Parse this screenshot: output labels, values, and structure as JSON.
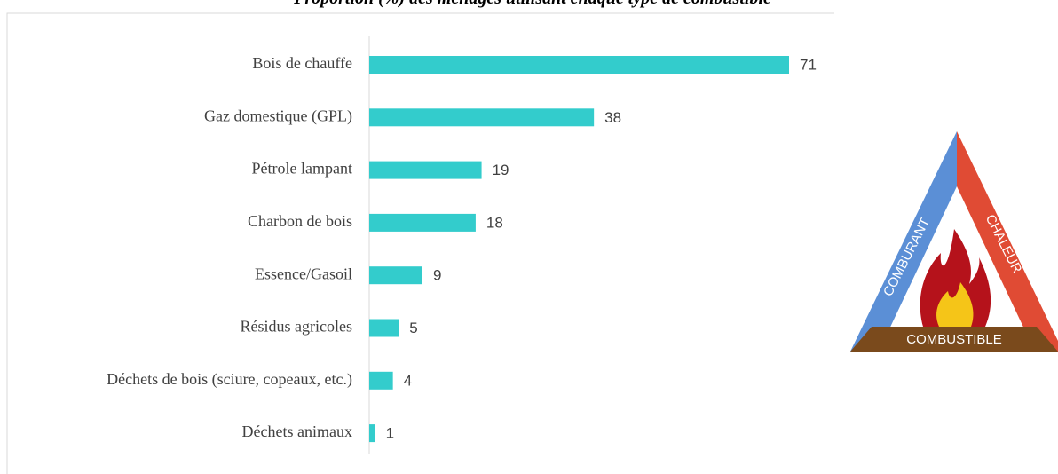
{
  "chart_data": {
    "type": "bar",
    "orientation": "horizontal",
    "title": "Proportion (%) des ménages utilisant chaque type de combustible",
    "categories": [
      "Bois de chauffe",
      "Gaz domestique (GPL)",
      "Pétrole lampant",
      "Charbon de bois",
      "Essence/Gasoil",
      "Résidus agricoles",
      "Déchets de bois (sciure, copeaux, etc.)",
      "Déchets animaux"
    ],
    "values": [
      71,
      38,
      19,
      18,
      9,
      5,
      4,
      1
    ],
    "color": "#33cccc",
    "xlim": [
      0,
      71
    ],
    "annotations": [
      "COMBURANT",
      "CHALEUR",
      "COMBUSTIBLE"
    ]
  }
}
